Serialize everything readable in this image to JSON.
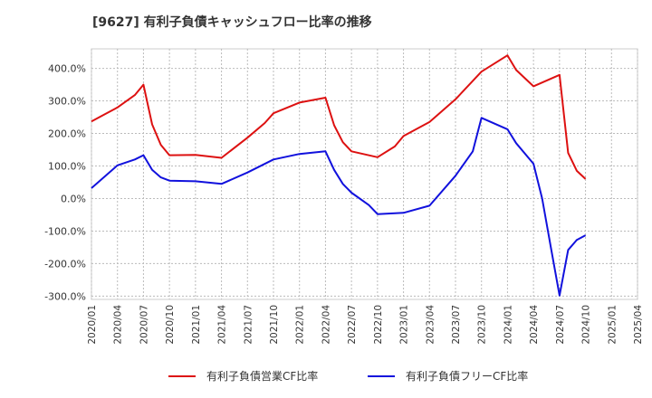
{
  "chart_data": {
    "type": "line",
    "title": "[9627]  有利子負債キャッシュフロー比率の推移",
    "xlabel": "",
    "ylabel": "",
    "ylim": [
      -310,
      460
    ],
    "yticks": [
      400,
      300,
      200,
      100,
      0,
      -100,
      -200,
      -300
    ],
    "ytick_labels": [
      "400.0%",
      "300.0%",
      "200.0%",
      "100.0%",
      "0.0%",
      "-100.0%",
      "-200.0%",
      "-300.0%"
    ],
    "xtick_labels": [
      "2020/01",
      "2020/04",
      "2020/07",
      "2020/10",
      "2021/01",
      "2021/04",
      "2021/07",
      "2021/10",
      "2022/01",
      "2022/04",
      "2022/07",
      "2022/10",
      "2023/01",
      "2023/04",
      "2023/07",
      "2023/10",
      "2024/01",
      "2024/04",
      "2024/07",
      "2024/10",
      "2025/01",
      "2025/04"
    ],
    "grid": true,
    "legend_position": "bottom",
    "series": [
      {
        "name": "有利子負債営業CF比率",
        "color": "#dd1111",
        "points": [
          [
            "2020/01",
            237
          ],
          [
            "2020/04",
            280
          ],
          [
            "2020/06",
            318
          ],
          [
            "2020/07",
            350
          ],
          [
            "2020/08",
            228
          ],
          [
            "2020/09",
            165
          ],
          [
            "2020/10",
            133
          ],
          [
            "2021/01",
            134
          ],
          [
            "2021/04",
            125
          ],
          [
            "2021/07",
            187
          ],
          [
            "2021/09",
            232
          ],
          [
            "2021/10",
            262
          ],
          [
            "2022/01",
            295
          ],
          [
            "2022/04",
            310
          ],
          [
            "2022/05",
            225
          ],
          [
            "2022/06",
            173
          ],
          [
            "2022/07",
            145
          ],
          [
            "2022/10",
            127
          ],
          [
            "2022/12",
            160
          ],
          [
            "2023/01",
            192
          ],
          [
            "2023/04",
            235
          ],
          [
            "2023/07",
            305
          ],
          [
            "2023/10",
            390
          ],
          [
            "2024/01",
            440
          ],
          [
            "2024/02",
            395
          ],
          [
            "2024/04",
            345
          ],
          [
            "2024/07",
            380
          ],
          [
            "2024/08",
            140
          ],
          [
            "2024/09",
            85
          ],
          [
            "2024/10",
            60
          ]
        ]
      },
      {
        "name": "有利子負債フリーCF比率",
        "color": "#1111dd",
        "points": [
          [
            "2020/01",
            32
          ],
          [
            "2020/04",
            102
          ],
          [
            "2020/06",
            120
          ],
          [
            "2020/07",
            133
          ],
          [
            "2020/08",
            88
          ],
          [
            "2020/09",
            65
          ],
          [
            "2020/10",
            55
          ],
          [
            "2021/01",
            53
          ],
          [
            "2021/04",
            45
          ],
          [
            "2021/07",
            80
          ],
          [
            "2021/10",
            120
          ],
          [
            "2022/01",
            137
          ],
          [
            "2022/04",
            145
          ],
          [
            "2022/05",
            88
          ],
          [
            "2022/06",
            45
          ],
          [
            "2022/07",
            18
          ],
          [
            "2022/09",
            -20
          ],
          [
            "2022/10",
            -48
          ],
          [
            "2023/01",
            -44
          ],
          [
            "2023/04",
            -22
          ],
          [
            "2023/07",
            70
          ],
          [
            "2023/09",
            145
          ],
          [
            "2023/10",
            248
          ],
          [
            "2024/01",
            213
          ],
          [
            "2024/02",
            170
          ],
          [
            "2024/04",
            107
          ],
          [
            "2024/05",
            0
          ],
          [
            "2024/06",
            -150
          ],
          [
            "2024/07",
            -298
          ],
          [
            "2024/08",
            -158
          ],
          [
            "2024/09",
            -127
          ],
          [
            "2024/10",
            -113
          ]
        ]
      }
    ]
  }
}
